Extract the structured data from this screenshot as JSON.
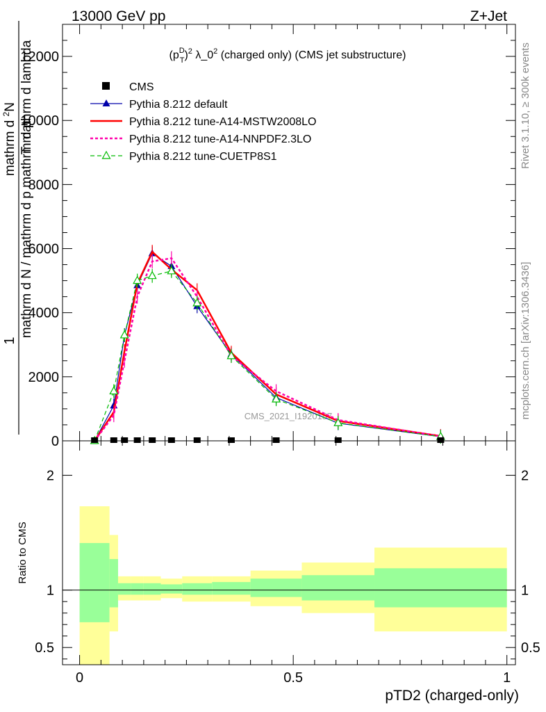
{
  "header": {
    "left": "13000 GeV pp",
    "right": "Z+Jet"
  },
  "side_labels": {
    "rivet": "Rivet 3.1.10, ≥ 300k events",
    "mcplots": "mcplots.cern.ch [arXiv:1306.3436]"
  },
  "chart_data": [
    {
      "type": "line",
      "title": "(p_T^D)^2 λ_0^2 (charged only) (CMS jet substructure)",
      "title_parts": {
        "pre": "(p",
        "sup_d": "D",
        "sub_t": "T",
        "post1": ")",
        "sq1": "2",
        "mid": " λ_0",
        "sq2": "2",
        "tail": " (charged only) (CMS jet substructure)"
      },
      "ylabel_lines": [
        "1",
        "mathrm d N / mathrm d p_mathrm d p_T mathrm d lambda",
        "mathrm d^2N"
      ],
      "ylabel_frac": {
        "num": "1",
        "den_mid": "mathrm d N / mathrm d p",
        "den_tail": "mathrm d p",
        "den_tail2": "mathrm d lambda",
        "sub": "T",
        "top_pre": "mathrm d",
        "top_sup": "2",
        "top_post": "N"
      },
      "xlim": [
        -0.04,
        1.02
      ],
      "ylim": [
        0,
        13000
      ],
      "yticks": [
        0,
        2000,
        4000,
        6000,
        8000,
        10000,
        12000
      ],
      "ytick_labels": [
        "0",
        "2000",
        "4000",
        "6000",
        "8000",
        "10000",
        "12000"
      ],
      "watermark": "CMS_2021_I1920187",
      "legend_position": "top-left",
      "legend": [
        {
          "label": "CMS",
          "color": "#000000"
        },
        {
          "label": "Pythia 8.212 default",
          "color": "#0000aa"
        },
        {
          "label": "Pythia 8.212 tune-A14-MSTW2008LO",
          "color": "#ff0000"
        },
        {
          "label": "Pythia 8.212 tune-A14-NNPDF2.3LO",
          "color": "#ff00aa"
        },
        {
          "label": "Pythia 8.212 tune-CUETP8S1",
          "color": "#00bb00"
        }
      ],
      "cms": {
        "x": [
          0.035,
          0.08,
          0.105,
          0.135,
          0.17,
          0.215,
          0.275,
          0.355,
          0.46,
          0.605,
          0.845
        ],
        "y": [
          0,
          0,
          0,
          0,
          0,
          0,
          0,
          0,
          0,
          0,
          0
        ]
      },
      "series": [
        {
          "name": "Pythia 8.212 default",
          "color": "#0000aa",
          "style": "solid",
          "marker": "triangle-filled",
          "x": [
            0.035,
            0.08,
            0.105,
            0.135,
            0.17,
            0.215,
            0.275,
            0.355,
            0.46,
            0.605,
            0.845
          ],
          "y": [
            0,
            1100,
            3300,
            4850,
            5850,
            5450,
            4200,
            2700,
            1350,
            550,
            130
          ]
        },
        {
          "name": "Pythia 8.212 tune-A14-MSTW2008LO",
          "color": "#ff0000",
          "style": "solid",
          "marker": "none",
          "x": [
            0.035,
            0.08,
            0.105,
            0.135,
            0.17,
            0.215,
            0.275,
            0.355,
            0.46,
            0.605,
            0.845
          ],
          "y": [
            0,
            900,
            2800,
            4900,
            5900,
            5350,
            4700,
            2750,
            1450,
            620,
            150
          ]
        },
        {
          "name": "Pythia 8.212 tune-A14-NNPDF2.3LO",
          "color": "#ff00aa",
          "style": "dotted",
          "marker": "none",
          "x": [
            0.035,
            0.08,
            0.105,
            0.135,
            0.17,
            0.215,
            0.275,
            0.355,
            0.46,
            0.605,
            0.845
          ],
          "y": [
            0,
            800,
            2500,
            4500,
            5600,
            5700,
            4500,
            2650,
            1550,
            650,
            140
          ]
        },
        {
          "name": "Pythia 8.212 tune-CUETP8S1",
          "color": "#00bb00",
          "style": "dashed",
          "marker": "triangle-open",
          "x": [
            0.035,
            0.08,
            0.105,
            0.135,
            0.17,
            0.215,
            0.275,
            0.355,
            0.46,
            0.605,
            0.845
          ],
          "y": [
            0,
            1550,
            3300,
            5000,
            5150,
            5300,
            4300,
            2650,
            1300,
            560,
            130
          ]
        }
      ]
    },
    {
      "type": "area",
      "ylabel": "Ratio to CMS",
      "xlabel": "pTD2 (charged-only)",
      "xlim": [
        -0.04,
        1.02
      ],
      "ylim": [
        0.35,
        2.3
      ],
      "yticks": [
        0.5,
        1,
        2
      ],
      "ytick_labels": [
        "0.5",
        "1",
        "2"
      ],
      "xticks": [
        0,
        0.5,
        1
      ],
      "xtick_labels": [
        "0",
        "0.5",
        "1"
      ],
      "bins": [
        {
          "lo": 0.0,
          "hi": 0.07,
          "green": [
            0.72,
            1.41
          ],
          "yellow": [
            0.35,
            1.73
          ]
        },
        {
          "lo": 0.07,
          "hi": 0.09,
          "green": [
            0.85,
            1.27
          ],
          "yellow": [
            0.64,
            1.48
          ]
        },
        {
          "lo": 0.09,
          "hi": 0.12,
          "green": [
            0.96,
            1.06
          ],
          "yellow": [
            0.91,
            1.12
          ]
        },
        {
          "lo": 0.12,
          "hi": 0.15,
          "green": [
            0.96,
            1.06
          ],
          "yellow": [
            0.91,
            1.12
          ]
        },
        {
          "lo": 0.15,
          "hi": 0.19,
          "green": [
            0.96,
            1.06
          ],
          "yellow": [
            0.91,
            1.12
          ]
        },
        {
          "lo": 0.19,
          "hi": 0.24,
          "green": [
            0.97,
            1.05
          ],
          "yellow": [
            0.93,
            1.1
          ]
        },
        {
          "lo": 0.24,
          "hi": 0.31,
          "green": [
            0.96,
            1.06
          ],
          "yellow": [
            0.9,
            1.12
          ]
        },
        {
          "lo": 0.31,
          "hi": 0.4,
          "green": [
            0.96,
            1.07
          ],
          "yellow": [
            0.9,
            1.12
          ]
        },
        {
          "lo": 0.4,
          "hi": 0.52,
          "green": [
            0.94,
            1.1
          ],
          "yellow": [
            0.86,
            1.17
          ]
        },
        {
          "lo": 0.52,
          "hi": 0.69,
          "green": [
            0.91,
            1.13
          ],
          "yellow": [
            0.8,
            1.24
          ]
        },
        {
          "lo": 0.69,
          "hi": 1.0,
          "green": [
            0.85,
            1.19
          ],
          "yellow": [
            0.64,
            1.37
          ]
        }
      ]
    }
  ]
}
